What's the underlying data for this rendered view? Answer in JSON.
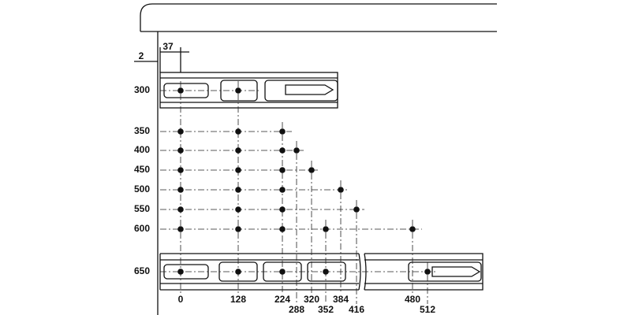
{
  "dimensions": [
    "2",
    "37"
  ],
  "rows": [
    "300",
    "350",
    "400",
    "450",
    "500",
    "550",
    "600",
    "650"
  ],
  "columns": [
    "0",
    "128",
    "224",
    "288",
    "320",
    "352",
    "384",
    "416",
    "480",
    "512"
  ]
}
